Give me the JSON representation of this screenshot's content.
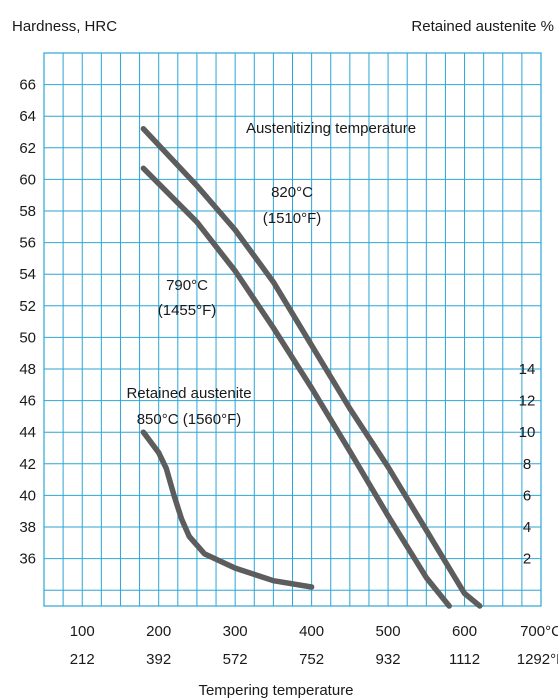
{
  "chart_data": {
    "type": "line",
    "title": "",
    "left_axis_label": "Hardness, HRC",
    "right_axis_label": "Retained austenite %",
    "x_axis_label": "Tempering temperature",
    "x_axis_unit_c": "°C",
    "x_axis_unit_f": "°F",
    "x_range": [
      50,
      700
    ],
    "x_ticks_c": [
      "100",
      "200",
      "300",
      "400",
      "500",
      "600",
      "700°C"
    ],
    "x_ticks_f": [
      "212",
      "392",
      "572",
      "752",
      "932",
      "1112",
      "1292°F"
    ],
    "y_left_range": [
      33,
      68
    ],
    "y_left_ticks": [
      "36",
      "38",
      "40",
      "42",
      "44",
      "46",
      "48",
      "50",
      "52",
      "54",
      "56",
      "58",
      "60",
      "62",
      "64",
      "66"
    ],
    "y_right_ticks": [
      "2",
      "4",
      "6",
      "8",
      "10",
      "12",
      "14"
    ],
    "grid": true,
    "annotations": {
      "austenitizing": "Austenitizing temperature",
      "s820_line1": "820°C",
      "s820_line2": "(1510°F)",
      "s790_line1": "790°C",
      "s790_line2": "(1455°F)",
      "ra_line1": "Retained austenite",
      "ra_line2": "850°C (1560°F)"
    },
    "series": [
      {
        "name": "820°C (1510°F)",
        "axis": "left",
        "x": [
          180,
          250,
          300,
          350,
          400,
          450,
          500,
          550,
          600,
          620
        ],
        "y": [
          63.2,
          59.6,
          56.8,
          53.5,
          49.5,
          45.5,
          41.8,
          37.8,
          33.8,
          33.0
        ]
      },
      {
        "name": "790°C (1455°F)",
        "axis": "left",
        "x": [
          180,
          250,
          300,
          350,
          400,
          450,
          500,
          550,
          580
        ],
        "y": [
          60.7,
          57.3,
          54.2,
          50.6,
          46.8,
          42.8,
          38.7,
          34.8,
          33.0
        ]
      },
      {
        "name": "Retained austenite 850°C (1560°F)",
        "axis": "right",
        "x": [
          180,
          200,
          210,
          220,
          230,
          240,
          260,
          300,
          350,
          400
        ],
        "y": [
          10.0,
          8.7,
          7.7,
          6.0,
          4.5,
          3.4,
          2.3,
          1.4,
          0.6,
          0.2
        ]
      }
    ]
  }
}
